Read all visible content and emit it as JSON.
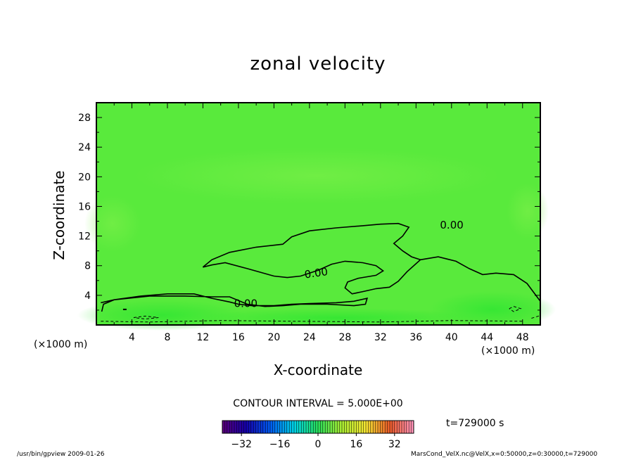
{
  "chart_data": {
    "type": "contour",
    "title": "zonal velocity",
    "xlabel": "X-coordinate",
    "ylabel": "Z-coordinate",
    "x_unit_label": "(×1000 m)",
    "xlim": [
      0,
      50
    ],
    "ylim": [
      0,
      30
    ],
    "x_ticks": [
      4,
      8,
      12,
      16,
      20,
      24,
      28,
      32,
      36,
      40,
      44,
      48
    ],
    "y_ticks": [
      4,
      8,
      12,
      16,
      20,
      24,
      28
    ],
    "contour_interval_text": "CONTOUR INTERVAL = 5.000E+00",
    "contour_labels": [
      "0.00",
      "0.00",
      "0.00"
    ],
    "time_text": "t=729000 s",
    "colorbar": {
      "range": [
        -40,
        40
      ],
      "ticks": [
        -32,
        -16,
        0,
        16,
        32
      ],
      "tick_labels": [
        "−32",
        "−16",
        "0",
        "16",
        "32"
      ]
    },
    "zero_contour_main": [
      [
        0.6,
        1.8
      ],
      [
        0.8,
        2.8
      ],
      [
        2,
        3.4
      ],
      [
        5,
        3.9
      ],
      [
        8,
        4.2
      ],
      [
        11,
        4.2
      ],
      [
        13,
        3.6
      ],
      [
        15,
        3.1
      ],
      [
        16,
        2.8
      ],
      [
        17.5,
        2.6
      ],
      [
        20,
        2.6
      ],
      [
        22,
        2.8
      ],
      [
        24,
        2.9
      ],
      [
        27,
        3.0
      ],
      [
        29,
        3.2
      ],
      [
        30.5,
        3.6
      ],
      [
        30.3,
        2.8
      ],
      [
        29,
        2.6
      ],
      [
        26,
        2.8
      ],
      [
        23,
        2.8
      ],
      [
        21,
        2.6
      ],
      [
        19,
        2.5
      ],
      [
        17,
        2.8
      ],
      [
        15,
        3.8
      ],
      [
        13,
        3.8
      ],
      [
        10,
        3.9
      ],
      [
        6,
        3.9
      ],
      [
        2,
        3.4
      ],
      [
        0.5,
        3.0
      ]
    ],
    "zero_contour_upper": [
      [
        12,
        7.8
      ],
      [
        13,
        8.1
      ],
      [
        14.5,
        8.4
      ],
      [
        17,
        7.6
      ],
      [
        20,
        6.6
      ],
      [
        21.5,
        6.4
      ],
      [
        23,
        6.6
      ],
      [
        25,
        7.4
      ],
      [
        26.5,
        8.2
      ],
      [
        28,
        8.6
      ],
      [
        30,
        8.4
      ],
      [
        31.5,
        8.0
      ],
      [
        32.3,
        7.3
      ],
      [
        31.5,
        6.7
      ],
      [
        29.5,
        6.3
      ],
      [
        28.3,
        5.8
      ],
      [
        28,
        5.0
      ],
      [
        28.8,
        4.2
      ],
      [
        30,
        4.5
      ],
      [
        31.5,
        4.9
      ],
      [
        33,
        5.1
      ],
      [
        34,
        5.9
      ],
      [
        35,
        7.2
      ],
      [
        36.5,
        8.8
      ],
      [
        38.5,
        9.2
      ],
      [
        40.5,
        8.6
      ],
      [
        42,
        7.6
      ],
      [
        43.5,
        6.8
      ],
      [
        45,
        7.0
      ],
      [
        47,
        6.8
      ],
      [
        48.5,
        5.6
      ],
      [
        49.5,
        4.0
      ],
      [
        50,
        3.2
      ]
    ],
    "zero_contour_top": [
      [
        12,
        7.8
      ],
      [
        13,
        8.8
      ],
      [
        15,
        9.8
      ],
      [
        18,
        10.5
      ],
      [
        21,
        10.9
      ],
      [
        22,
        11.9
      ],
      [
        24,
        12.7
      ],
      [
        27,
        13.1
      ],
      [
        30,
        13.4
      ],
      [
        32,
        13.6
      ],
      [
        34,
        13.7
      ],
      [
        35.2,
        13.2
      ],
      [
        34.5,
        12.0
      ],
      [
        33.5,
        11.0
      ],
      [
        34.5,
        10.0
      ],
      [
        35.5,
        9.2
      ],
      [
        36.5,
        8.8
      ]
    ],
    "negative_contours": [
      [
        [
          4.2,
          1.0
        ],
        [
          5.5,
          1.2
        ],
        [
          7,
          1.0
        ],
        [
          5.5,
          0.8
        ],
        [
          4.2,
          1.0
        ]
      ],
      [
        [
          0.5,
          0.5
        ],
        [
          6,
          0.4
        ],
        [
          14,
          0.6
        ],
        [
          22,
          0.5
        ],
        [
          32,
          0.4
        ],
        [
          40,
          0.6
        ],
        [
          48,
          0.5
        ]
      ],
      [
        [
          46.5,
          2.2
        ],
        [
          47,
          2.5
        ],
        [
          47.8,
          2.2
        ],
        [
          47,
          1.8
        ],
        [
          46.5,
          2.2
        ]
      ],
      [
        [
          49,
          0.9
        ],
        [
          49.8,
          1.2
        ],
        [
          50,
          0.8
        ]
      ]
    ],
    "small_feature": [
      [
        3.0,
        2.1
      ],
      [
        3.4,
        2.1
      ]
    ]
  },
  "footer": {
    "left": "/usr/bin/gpview  2009-01-26",
    "right": "MarsCond_VelX.nc@VelX,x=0:50000,z=0:30000,t=729000"
  }
}
